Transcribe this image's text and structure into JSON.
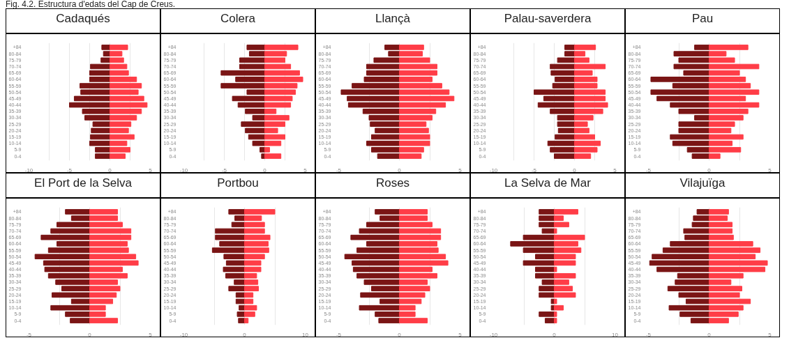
{
  "chart_data": [
    {
      "type": "bar",
      "orientation": "horizontal",
      "stacked": true,
      "title": "Cadaqués",
      "annotations": [
        "Fig. 4.2. Estructura d'edats del Cap de Creus."
      ],
      "categories": [
        "+84",
        "80-84",
        "75-79",
        "70-74",
        "65-69",
        "60-64",
        "55-59",
        "50-54",
        "45-49",
        "40-44",
        "35-39",
        "30-34",
        "25-29",
        "20-24",
        "15-19",
        "10-14",
        "5-9",
        "0-4"
      ],
      "xlim": [
        -10,
        5
      ],
      "xticks": [
        -10,
        {
          "value": -7.5,
          "label": null
        },
        -5,
        {
          "value": -2.5,
          "label": null
        },
        0,
        {
          "value": 2.5,
          "label": null
        },
        5
      ],
      "grid": "x",
      "series": [
        {
          "color": "#7a1515",
          "values": [
            -1.0,
            -0.8,
            -1.1,
            -2.4,
            -2.5,
            -2.5,
            -3.7,
            -3.6,
            -4.4,
            -5.0,
            -3.4,
            -3.1,
            -2.1,
            -2.3,
            -2.4,
            -2.5,
            -1.8,
            -1.8
          ]
        },
        {
          "color": "#ff3d47",
          "values": [
            2.2,
            1.5,
            1.7,
            2.1,
            2.3,
            3.3,
            3.9,
            3.5,
            4.2,
            4.6,
            3.9,
            3.3,
            2.6,
            2.3,
            3.0,
            2.1,
            2.5,
            1.9
          ]
        }
      ]
    },
    {
      "type": "bar",
      "orientation": "horizontal",
      "stacked": true,
      "title": "Colera",
      "categories": [
        "+84",
        "80-84",
        "75-79",
        "70-74",
        "65-69",
        "60-64",
        "55-59",
        "50-54",
        "45-49",
        "40-44",
        "35-39",
        "30-34",
        "25-29",
        "20-24",
        "15-19",
        "10-14",
        "5-9",
        "0-4"
      ],
      "xlim": [
        -10,
        5
      ],
      "xticks": [
        -10,
        {
          "value": -7.5,
          "label": null
        },
        -5,
        {
          "value": -2.5,
          "label": null
        },
        0,
        {
          "value": 2.5,
          "label": null
        },
        5
      ],
      "grid": "x",
      "series": [
        {
          "color": "#7a1515",
          "values": [
            -2.2,
            -1.9,
            -3.1,
            -3.1,
            -5.4,
            -3.6,
            -5.4,
            -2.2,
            -4.0,
            -3.3,
            -2.4,
            -1.5,
            -2.9,
            -2.4,
            -2.0,
            -1.5,
            -0.6,
            -0.4
          ]
        },
        {
          "color": "#ff3d47",
          "values": [
            4.1,
            2.7,
            2.5,
            3.2,
            4.3,
            4.7,
            4.0,
            3.8,
            3.4,
            3.2,
            1.4,
            3.0,
            2.5,
            1.6,
            2.5,
            2.0,
            0.6,
            2.0
          ]
        }
      ]
    },
    {
      "type": "bar",
      "orientation": "horizontal",
      "stacked": true,
      "title": "Llançà",
      "categories": [
        "+84",
        "80-84",
        "75-79",
        "70-74",
        "65-69",
        "60-64",
        "55-59",
        "50-54",
        "45-49",
        "40-44",
        "35-39",
        "30-34",
        "25-29",
        "20-24",
        "15-19",
        "10-14",
        "5-9",
        "0-4"
      ],
      "xlim": [
        -5,
        5
      ],
      "xticks": [
        -5,
        {
          "value": -2.5,
          "label": null
        },
        0,
        {
          "value": 2.5,
          "label": null
        },
        5
      ],
      "grid": "x",
      "series": [
        {
          "color": "#7a1515",
          "values": [
            -1.2,
            -0.9,
            -2.1,
            -2.7,
            -2.7,
            -2.9,
            -3.9,
            -4.8,
            -4.3,
            -4.2,
            -3.0,
            -2.5,
            -2.4,
            -2.0,
            -2.3,
            -2.7,
            -2.3,
            -1.8
          ]
        },
        {
          "color": "#ff3d47",
          "values": [
            2.0,
            1.9,
            2.5,
            3.1,
            3.1,
            2.7,
            3.5,
            4.1,
            4.5,
            3.8,
            3.0,
            2.7,
            2.2,
            2.4,
            2.5,
            2.5,
            2.0,
            1.8
          ]
        }
      ]
    },
    {
      "type": "bar",
      "orientation": "horizontal",
      "stacked": true,
      "title": "Palau-saverdera",
      "categories": [
        "+84",
        "80-84",
        "75-79",
        "70-74",
        "65-69",
        "60-64",
        "55-59",
        "50-54",
        "45-49",
        "40-44",
        "35-39",
        "30-34",
        "25-29",
        "20-24",
        "15-19",
        "10-14",
        "5-9",
        "0-4"
      ],
      "xlim": [
        -10,
        5
      ],
      "xticks": [
        -10,
        {
          "value": -7.5,
          "label": null
        },
        -5,
        {
          "value": -2.5,
          "label": null
        },
        0,
        {
          "value": 2.5,
          "label": null
        },
        5
      ],
      "grid": "x",
      "series": [
        {
          "color": "#7a1515",
          "values": [
            -1.2,
            -1.2,
            -2.1,
            -3.0,
            -2.9,
            -2.4,
            -2.7,
            -5.0,
            -3.8,
            -4.5,
            -3.0,
            -2.1,
            -2.1,
            -2.0,
            -2.4,
            -3.3,
            -3.0,
            -2.5
          ]
        },
        {
          "color": "#ff3d47",
          "values": [
            2.6,
            1.3,
            1.8,
            3.8,
            2.2,
            2.8,
            2.8,
            3.8,
            3.8,
            4.1,
            3.5,
            2.3,
            1.6,
            1.8,
            2.5,
            3.2,
            2.8,
            2.0
          ]
        }
      ]
    },
    {
      "type": "bar",
      "orientation": "horizontal",
      "stacked": true,
      "title": "Pau",
      "categories": [
        "+84",
        "80-84",
        "75-79",
        "70-74",
        "65-69",
        "60-64",
        "55-59",
        "50-54",
        "45-49",
        "40-44",
        "35-39",
        "30-34",
        "25-29",
        "20-24",
        "15-19",
        "10-14",
        "5-9",
        "0-4"
      ],
      "xlim": [
        -5,
        5
      ],
      "xticks": [
        -5,
        {
          "value": -2.5,
          "label": null
        },
        0,
        {
          "value": 2.5,
          "label": null
        },
        5
      ],
      "grid": "x",
      "series": [
        {
          "color": "#7a1515",
          "values": [
            -1.2,
            -2.9,
            -2.5,
            -2.9,
            -2.1,
            -4.8,
            -3.0,
            -4.8,
            -4.3,
            -3.2,
            -2.5,
            -1.2,
            -2.5,
            -2.5,
            -3.2,
            -3.0,
            -1.8,
            -1.4
          ]
        },
        {
          "color": "#ff3d47",
          "values": [
            3.2,
            1.4,
            2.1,
            4.1,
            2.5,
            3.0,
            3.4,
            4.1,
            3.0,
            4.1,
            3.2,
            2.8,
            2.1,
            1.8,
            2.8,
            1.9,
            2.6,
            0.9
          ]
        }
      ]
    },
    {
      "type": "bar",
      "orientation": "horizontal",
      "stacked": true,
      "title": "El Port de la Selva",
      "categories": [
        "+84",
        "80-84",
        "75-79",
        "70-74",
        "65-69",
        "60-64",
        "55-59",
        "50-54",
        "45-49",
        "40-44",
        "35-39",
        "30-34",
        "25-29",
        "20-24",
        "15-19",
        "10-14",
        "5-9",
        "0-4"
      ],
      "xlim": [
        -5,
        5
      ],
      "xticks": [
        -5,
        {
          "value": -2.5,
          "label": null
        },
        0,
        {
          "value": 2.5,
          "label": null
        },
        5
      ],
      "grid": "x",
      "series": [
        {
          "color": "#7a1515",
          "values": [
            -2.0,
            -1.5,
            -2.7,
            -3.2,
            -4.0,
            -2.7,
            -3.4,
            -4.5,
            -3.8,
            -3.7,
            -3.4,
            -2.8,
            -2.3,
            -3.1,
            -1.5,
            -3.2,
            -2.0,
            -1.6
          ]
        },
        {
          "color": "#ff3d47",
          "values": [
            2.3,
            2.3,
            2.7,
            3.4,
            3.4,
            3.1,
            3.2,
            3.8,
            4.0,
            2.7,
            3.1,
            2.3,
            2.5,
            2.2,
            1.9,
            1.3,
            1.3,
            2.3
          ]
        }
      ]
    },
    {
      "type": "bar",
      "orientation": "horizontal",
      "stacked": true,
      "title": "Portbou",
      "categories": [
        "+84",
        "80-84",
        "75-79",
        "70-74",
        "65-69",
        "60-64",
        "55-59",
        "50-54",
        "45-49",
        "40-44",
        "35-39",
        "30-34",
        "25-29",
        "20-24",
        "15-19",
        "10-14",
        "5-9",
        "0-4"
      ],
      "xlim": [
        -10,
        10
      ],
      "xticks": [
        -10,
        {
          "value": -5,
          "label": null
        },
        0,
        {
          "value": 5,
          "label": null
        },
        10
      ],
      "grid": "x",
      "series": [
        {
          "color": "#7a1515",
          "values": [
            -2.6,
            -1.6,
            -2.1,
            -4.8,
            -4.8,
            -4.1,
            -5.3,
            -3.4,
            -3.0,
            -3.5,
            -3.1,
            -1.7,
            -2.6,
            -1.4,
            -1.4,
            -0.9,
            -1.2,
            -1.0
          ]
        },
        {
          "color": "#ff3d47",
          "values": [
            5.0,
            2.8,
            3.3,
            3.3,
            4.2,
            3.9,
            4.0,
            3.3,
            2.7,
            2.7,
            2.0,
            2.2,
            2.3,
            1.4,
            1.4,
            2.0,
            1.7,
            0.6
          ]
        }
      ]
    },
    {
      "type": "bar",
      "orientation": "horizontal",
      "stacked": true,
      "title": "Roses",
      "categories": [
        "+84",
        "80-84",
        "75-79",
        "70-74",
        "65-69",
        "60-64",
        "55-59",
        "50-54",
        "45-49",
        "40-44",
        "35-39",
        "30-34",
        "25-29",
        "20-24",
        "15-19",
        "10-14",
        "5-9",
        "0-4"
      ],
      "xlim": [
        -5,
        5
      ],
      "xticks": [
        -5,
        {
          "value": -2.5,
          "label": null
        },
        0,
        {
          "value": 2.5,
          "label": null
        },
        5
      ],
      "grid": "x",
      "series": [
        {
          "color": "#7a1515",
          "values": [
            -2.0,
            -1.6,
            -2.7,
            -3.3,
            -4.0,
            -2.7,
            -3.5,
            -4.5,
            -3.9,
            -3.8,
            -3.5,
            -2.9,
            -2.3,
            -3.2,
            -1.6,
            -3.3,
            -2.0,
            -1.7
          ]
        },
        {
          "color": "#ff3d47",
          "values": [
            2.3,
            2.3,
            2.7,
            3.4,
            3.4,
            3.1,
            3.2,
            3.8,
            4.0,
            2.7,
            3.1,
            2.3,
            2.5,
            2.1,
            1.8,
            1.3,
            1.3,
            2.3
          ]
        }
      ]
    },
    {
      "type": "bar",
      "orientation": "horizontal",
      "stacked": true,
      "title": "La Selva de Mar",
      "categories": [
        "+84",
        "80-84",
        "75-79",
        "70-74",
        "65-69",
        "60-64",
        "55-59",
        "50-54",
        "45-49",
        "40-44",
        "35-39",
        "30-34",
        "25-29",
        "20-24",
        "15-19",
        "10-14",
        "5-9",
        "0-4"
      ],
      "xlim": [
        -10,
        10
      ],
      "xticks": [
        -10,
        {
          "value": -5,
          "label": null
        },
        0,
        {
          "value": 5,
          "label": null
        },
        10
      ],
      "grid": "x",
      "series": [
        {
          "color": "#7a1515",
          "values": [
            -2.5,
            -2.5,
            -2.5,
            -2.0,
            -5.1,
            -7.2,
            -5.1,
            -3.1,
            -5.1,
            -3.1,
            -3.1,
            -2.0,
            -2.5,
            -2.5,
            -0.5,
            -0.5,
            -2.5,
            -1.5
          ]
        },
        {
          "color": "#ff3d47",
          "values": [
            3.9,
            1.5,
            2.4,
            0.4,
            5.0,
            3.9,
            4.4,
            3.5,
            3.5,
            0.4,
            3.5,
            2.4,
            3.0,
            3.5,
            0.4,
            1.5,
            0.4,
            0.4
          ]
        }
      ]
    },
    {
      "type": "bar",
      "orientation": "horizontal",
      "stacked": true,
      "title": "Vilajuïga",
      "categories": [
        "+84",
        "80-84",
        "75-79",
        "70-74",
        "65-69",
        "60-64",
        "55-59",
        "50-54",
        "45-49",
        "40-44",
        "35-39",
        "30-34",
        "25-29",
        "20-24",
        "15-19",
        "10-14",
        "5-9",
        "0-4"
      ],
      "xlim": [
        -5,
        5
      ],
      "xticks": [
        -5,
        {
          "value": -2.5,
          "label": null
        },
        0,
        {
          "value": 2.5,
          "label": null
        },
        5
      ],
      "grid": "x",
      "series": [
        {
          "color": "#7a1515",
          "values": [
            -1.0,
            -1.3,
            -1.4,
            -2.1,
            -2.0,
            -3.2,
            -3.8,
            -4.7,
            -4.9,
            -4.3,
            -2.6,
            -2.8,
            -3.4,
            -2.5,
            -1.9,
            -3.3,
            -2.4,
            -1.5
          ]
        },
        {
          "color": "#ff3d47",
          "values": [
            1.6,
            1.5,
            1.9,
            1.9,
            2.0,
            3.6,
            4.2,
            3.8,
            4.8,
            4.6,
            2.8,
            1.8,
            2.7,
            2.5,
            3.4,
            2.8,
            2.4,
            1.6
          ]
        }
      ]
    }
  ]
}
